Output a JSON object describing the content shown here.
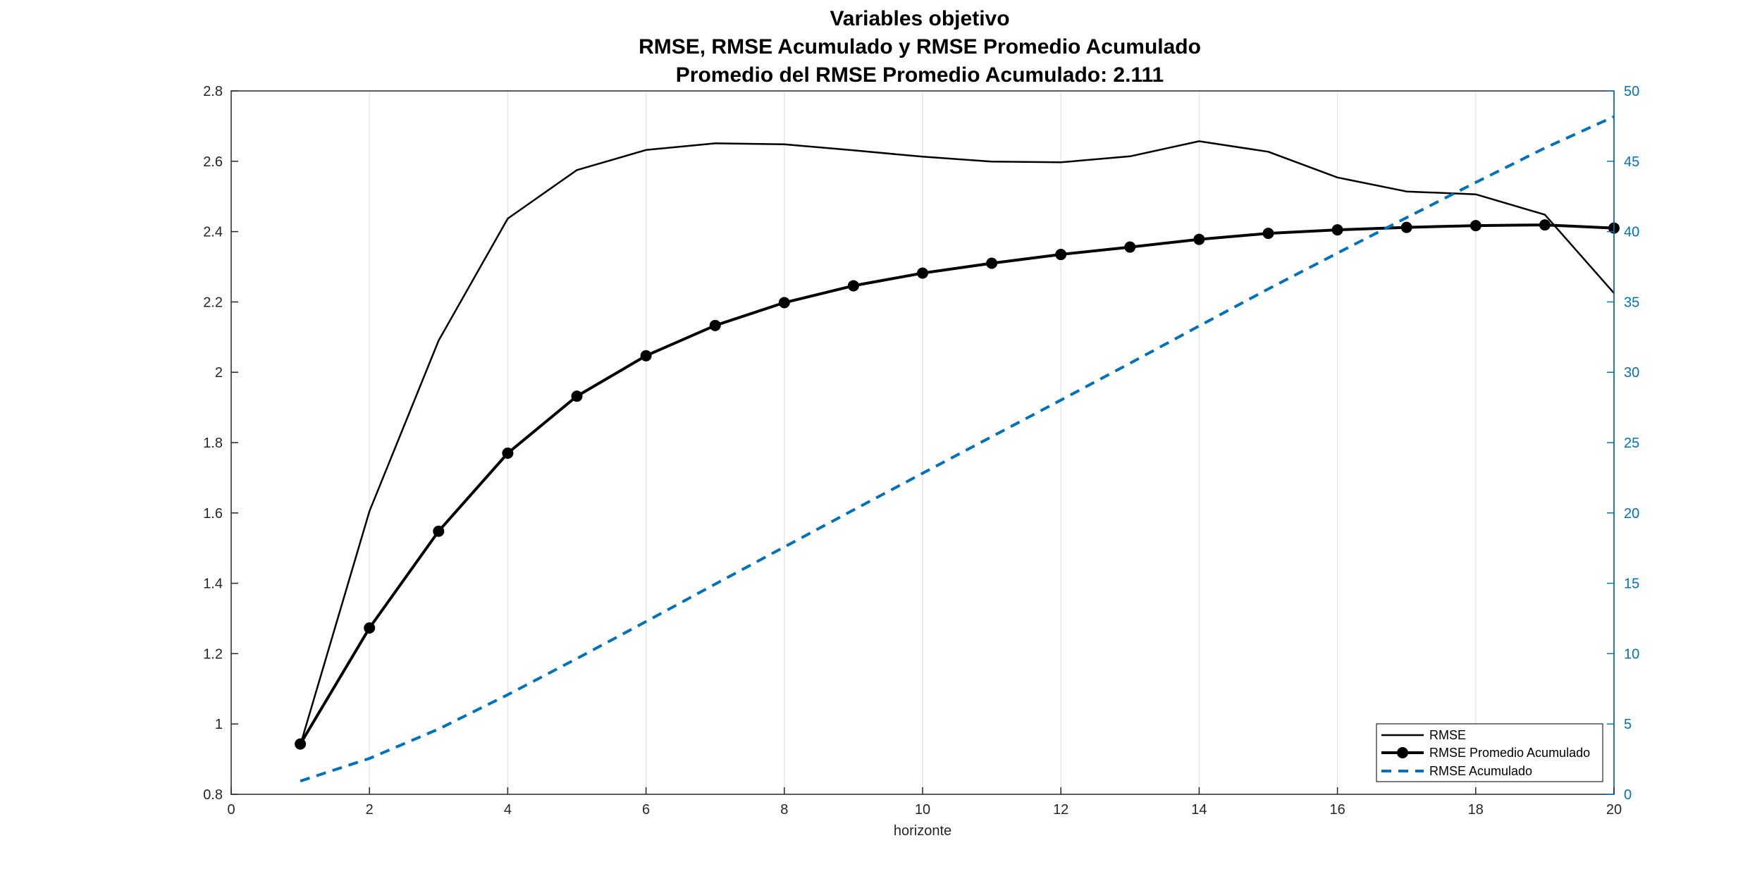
{
  "chart_data": {
    "type": "line",
    "title": [
      "Variables objetivo",
      "RMSE, RMSE Acumulado y RMSE Promedio Acumulado",
      "Promedio del RMSE Promedio Acumulado:  2.111"
    ],
    "xlabel": "horizonte",
    "ylabel": "",
    "ylabel_right": "",
    "xlim": [
      0,
      20
    ],
    "ylim": [
      0.8,
      2.8
    ],
    "ylim_right": [
      0,
      50
    ],
    "x_ticks": [
      "0",
      "2",
      "4",
      "6",
      "8",
      "10",
      "12",
      "14",
      "16",
      "18",
      "20"
    ],
    "y_ticks": [
      "0.8",
      "1",
      "1.2",
      "1.4",
      "1.6",
      "1.8",
      "2",
      "2.2",
      "2.4",
      "2.6",
      "2.8"
    ],
    "y_ticks_right": [
      "0",
      "5",
      "10",
      "15",
      "20",
      "25",
      "30",
      "35",
      "40",
      "45",
      "50"
    ],
    "grid": "x",
    "legend_position": "bottom-right",
    "x": [
      1,
      2,
      3,
      4,
      5,
      6,
      7,
      8,
      9,
      10,
      11,
      12,
      13,
      14,
      15,
      16,
      17,
      18,
      19,
      20
    ],
    "series": [
      {
        "name": "RMSE",
        "axis": "left",
        "style": "solid",
        "color": "#000000",
        "marker": "none",
        "values": [
          0.94,
          1.605,
          2.09,
          2.437,
          2.575,
          2.632,
          2.651,
          2.648,
          2.631,
          2.613,
          2.599,
          2.597,
          2.614,
          2.657,
          2.627,
          2.554,
          2.514,
          2.506,
          2.448,
          2.225
        ]
      },
      {
        "name": "RMSE Promedio Acumulado",
        "axis": "left",
        "style": "solid",
        "color": "#000000",
        "marker": "circle",
        "values": [
          0.943,
          1.273,
          1.548,
          1.77,
          1.932,
          2.047,
          2.133,
          2.198,
          2.246,
          2.282,
          2.31,
          2.335,
          2.356,
          2.378,
          2.395,
          2.405,
          2.412,
          2.417,
          2.419,
          2.41
        ]
      },
      {
        "name": "RMSE Acumulado",
        "axis": "right",
        "style": "dashed",
        "color": "#0072BD",
        "marker": "none",
        "values": [
          0.94,
          2.55,
          4.64,
          7.08,
          9.65,
          12.28,
          14.94,
          17.58,
          20.21,
          22.82,
          25.42,
          28.02,
          30.64,
          33.29,
          35.92,
          38.47,
          40.99,
          43.49,
          45.94,
          48.17
        ]
      }
    ]
  }
}
